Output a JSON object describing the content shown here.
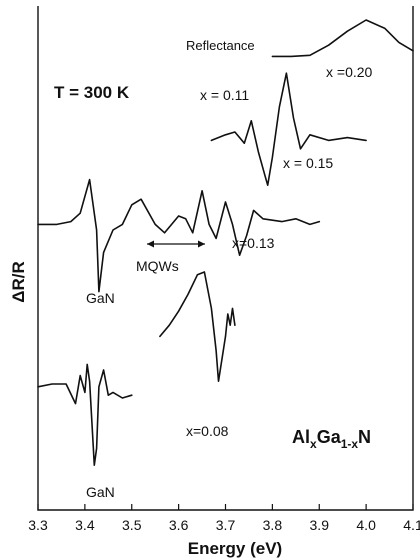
{
  "chart_data": {
    "type": "line",
    "xlabel": "Energy (eV)",
    "ylabel": "ΔR/R",
    "xlim": [
      3.3,
      4.1
    ],
    "xticks": [
      "3.3",
      "3.4",
      "3.5",
      "3.6",
      "3.7",
      "3.8",
      "3.9",
      "4.0",
      "4.1"
    ],
    "y_ticks_shown": false,
    "grid": false,
    "annotations": {
      "temperature": "T = 300 K",
      "reflectance": "Reflectance",
      "x020": "x =0.20",
      "x011": "x = 0.11",
      "x015": "x = 0.15",
      "x013": "x=0.13",
      "mqws": "MQWs",
      "gan_top": "GaN",
      "gan_bottom": "GaN",
      "x008": "x=0.08",
      "composition": {
        "base": "Al",
        "sub1": "x",
        "mid": "Ga",
        "sub2": "1-x",
        "end": "N"
      }
    },
    "series": [
      {
        "x": [
          3.8,
          3.84,
          3.88,
          3.92,
          3.96,
          4.0,
          4.04,
          4.07,
          4.1
        ],
        "y": [
          9.1,
          9.1,
          9.12,
          9.3,
          9.55,
          9.75,
          9.6,
          9.35,
          9.2
        ]
      },
      {
        "x": [
          3.67,
          3.7,
          3.72,
          3.74,
          3.755,
          3.77,
          3.785,
          3.79,
          3.8,
          3.815,
          3.83,
          3.845,
          3.86,
          3.88,
          3.92,
          3.96,
          4.0
        ],
        "y": [
          7.6,
          7.7,
          7.75,
          7.55,
          7.95,
          7.4,
          6.95,
          6.8,
          7.3,
          8.2,
          8.8,
          8.0,
          7.45,
          7.7,
          7.6,
          7.65,
          7.6
        ]
      },
      {
        "x": [
          3.3,
          3.34,
          3.37,
          3.39,
          3.41,
          3.425,
          3.43,
          3.44,
          3.46,
          3.48,
          3.5,
          3.52,
          3.55,
          3.57,
          3.6,
          3.615,
          3.63,
          3.65,
          3.665,
          3.68,
          3.7,
          3.715,
          3.73,
          3.745,
          3.76,
          3.78,
          3.82,
          3.85,
          3.88,
          3.9
        ],
        "y": [
          6.1,
          6.1,
          6.15,
          6.3,
          6.9,
          6.0,
          4.9,
          5.6,
          6.0,
          6.1,
          6.45,
          6.55,
          6.1,
          5.95,
          6.25,
          6.2,
          5.95,
          6.7,
          6.1,
          5.85,
          6.5,
          6.1,
          5.55,
          5.9,
          6.35,
          6.2,
          6.15,
          6.2,
          6.1,
          6.15
        ]
      },
      {
        "x": [
          3.56,
          3.58,
          3.6,
          3.62,
          3.64,
          3.655,
          3.67,
          3.68,
          3.685,
          3.7,
          3.705,
          3.71,
          3.715,
          3.72
        ],
        "y": [
          4.1,
          4.3,
          4.55,
          4.85,
          5.2,
          5.25,
          4.6,
          3.85,
          3.3,
          4.1,
          4.5,
          4.3,
          4.6,
          4.3
        ]
      },
      {
        "x": [
          3.3,
          3.33,
          3.36,
          3.38,
          3.39,
          3.4,
          3.405,
          3.41,
          3.42,
          3.425,
          3.43,
          3.44,
          3.45,
          3.46,
          3.48,
          3.5
        ],
        "y": [
          3.2,
          3.25,
          3.25,
          2.9,
          3.4,
          3.1,
          3.6,
          3.3,
          1.8,
          2.1,
          3.2,
          3.5,
          3.05,
          3.1,
          3.0,
          3.05
        ]
      }
    ]
  }
}
